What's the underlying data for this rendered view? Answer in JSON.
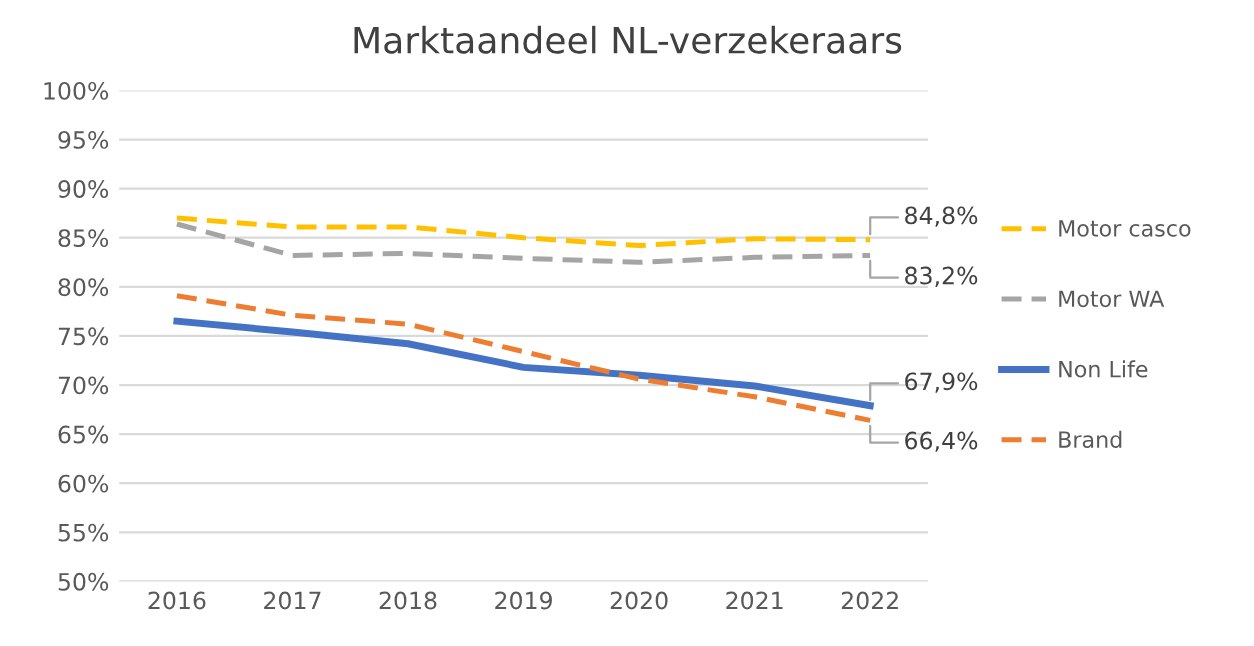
{
  "chart_data": {
    "type": "line",
    "title": "Marktaandeel NL-verzekeraars",
    "categories": [
      "2016",
      "2017",
      "2018",
      "2019",
      "2020",
      "2021",
      "2022"
    ],
    "series": [
      {
        "name": "Motor casco",
        "color": "#ffc000",
        "line_style": "dashed",
        "values": [
          87.0,
          86.1,
          86.1,
          85.0,
          84.2,
          84.9,
          84.8
        ],
        "value_labels": [
          null,
          null,
          null,
          null,
          null,
          null,
          "84,8%"
        ]
      },
      {
        "name": "Motor WA",
        "color": "#a5a5a5",
        "line_style": "dashed",
        "values": [
          86.4,
          83.2,
          83.4,
          82.9,
          82.5,
          83.0,
          83.2
        ],
        "value_labels": [
          null,
          null,
          null,
          null,
          null,
          null,
          "83,2%"
        ]
      },
      {
        "name": "Non Life",
        "color": "#4472c4",
        "line_style": "solid",
        "values": [
          76.5,
          75.4,
          74.2,
          71.8,
          71.0,
          69.9,
          67.9
        ],
        "value_labels": [
          null,
          null,
          null,
          null,
          null,
          null,
          "67,9%"
        ]
      },
      {
        "name": "Brand",
        "color": "#ed7d31",
        "line_style": "dashed",
        "values": [
          79.1,
          77.1,
          76.2,
          73.4,
          70.6,
          68.8,
          66.4
        ],
        "value_labels": [
          null,
          null,
          null,
          null,
          null,
          null,
          "66,4%"
        ]
      }
    ],
    "ylim": [
      50,
      100
    ],
    "yticks": [
      {
        "value": 50,
        "label": "50%"
      },
      {
        "value": 55,
        "label": "55%"
      },
      {
        "value": 60,
        "label": "60%"
      },
      {
        "value": 65,
        "label": "65%"
      },
      {
        "value": 70,
        "label": "70%"
      },
      {
        "value": 75,
        "label": "75%"
      },
      {
        "value": 80,
        "label": "80%"
      },
      {
        "value": 85,
        "label": "85%"
      },
      {
        "value": 90,
        "label": "90%"
      },
      {
        "value": 95,
        "label": "95%"
      },
      {
        "value": 100,
        "label": "100%"
      }
    ],
    "grid": "y",
    "legend": "right",
    "marker": "none"
  }
}
